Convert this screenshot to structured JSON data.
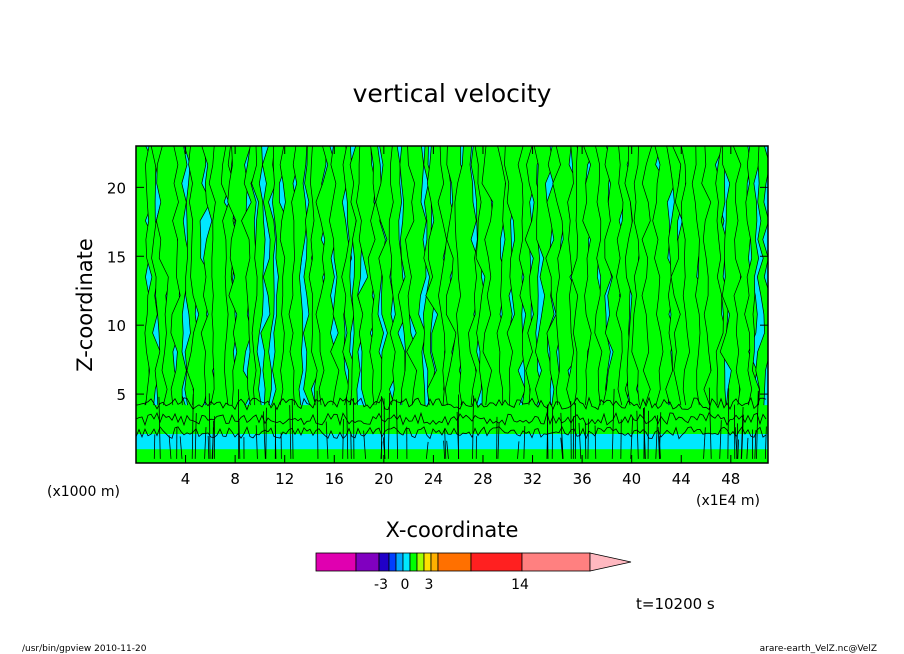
{
  "chart_data": {
    "type": "heatmap",
    "title": "vertical velocity",
    "xlabel": "X-coordinate",
    "ylabel": "Z-coordinate",
    "x_unit_left": "(x1000 m)",
    "x_unit_right": "(x1E4 m)",
    "xlim": [
      0,
      51
    ],
    "ylim": [
      0,
      23
    ],
    "x_ticks": [
      4,
      8,
      12,
      16,
      20,
      24,
      28,
      32,
      36,
      40,
      44,
      48
    ],
    "y_ticks": [
      5,
      10,
      15,
      20
    ],
    "field_colors": {
      "negative": "#00e8ff",
      "positive": "#00ff00",
      "contour_line": "#000000"
    },
    "colorbar": {
      "levels": [
        {
          "color": "#e000b0"
        },
        {
          "color": "#8000c0"
        },
        {
          "color": "#2000c8"
        },
        {
          "color": "#0040ff"
        },
        {
          "color": "#00a8ff"
        },
        {
          "color": "#00e8ff"
        },
        {
          "color": "#00ff00"
        },
        {
          "color": "#a0ff00"
        },
        {
          "color": "#ffe000"
        },
        {
          "color": "#ffb000"
        },
        {
          "color": "#ff7000"
        },
        {
          "color": "#ff2020"
        },
        {
          "color": "#ff8080"
        },
        {
          "color": "#ffb8c0"
        }
      ],
      "labels": [
        "-3",
        "0",
        "3",
        "14"
      ]
    },
    "time_label": "t=10200 s"
  },
  "footer": {
    "left": "/usr/bin/gpview   2010-11-20",
    "right": "arare-earth_VelZ.nc@VelZ"
  }
}
